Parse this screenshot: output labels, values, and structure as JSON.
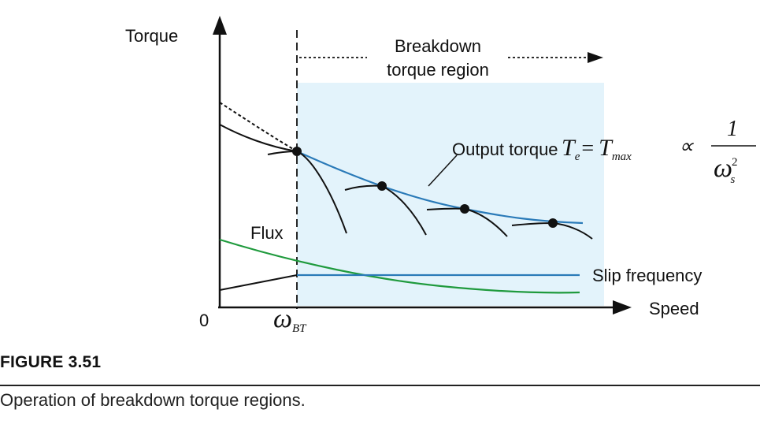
{
  "diagram": {
    "y_axis_label": "Torque",
    "x_axis_label": "Speed",
    "origin_label": "0",
    "omega_bt": {
      "symbol": "ω",
      "subscript": "BT"
    },
    "region_label_line1": "Breakdown",
    "region_label_line2": "torque region",
    "output_torque_label": "Output torque",
    "flux_label": "Flux",
    "slip_label": "Slip frequency",
    "formula": {
      "lhs": "T",
      "lhs_sub": "e",
      "eq": "=",
      "tmax": "T",
      "tmax_sub": "max",
      "prop": "∝",
      "numerator": "1",
      "denominator": "ω",
      "denom_sub": "s",
      "denom_sup": "2"
    },
    "colors": {
      "region_fill": "#e3f3fb",
      "output_torque_curve": "#2a7ab8",
      "flux_curve": "#1f9a3d",
      "slip_curve": "#2a7ab8",
      "torque_speed_curves": "#111111"
    }
  },
  "figure": {
    "number": "FIGURE 3.51",
    "caption": "Operation of breakdown torque regions."
  }
}
